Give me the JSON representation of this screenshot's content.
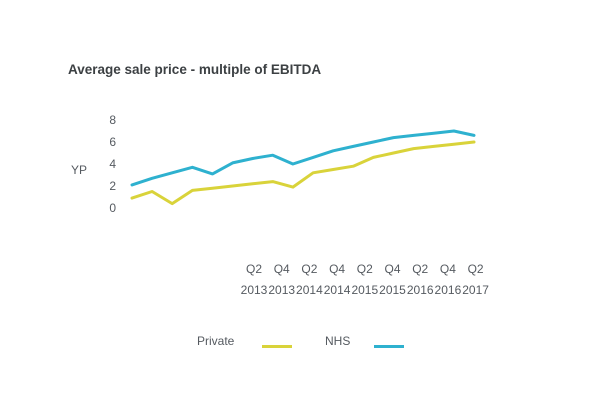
{
  "chart_data": {
    "type": "line",
    "title": "Average sale price - multiple of EBITDA",
    "ylabel": "YP",
    "xlabel": "",
    "ylim": [
      0,
      8
    ],
    "yticks": [
      0,
      2,
      4,
      6,
      8
    ],
    "x_tick_labels": [
      {
        "q": "Q2",
        "y": "2013"
      },
      {
        "q": "Q4",
        "y": "2013"
      },
      {
        "q": "Q2",
        "y": "2014"
      },
      {
        "q": "Q4",
        "y": "2014"
      },
      {
        "q": "Q2",
        "y": "2015"
      },
      {
        "q": "Q4",
        "y": "2015"
      },
      {
        "q": "Q2",
        "y": "2016"
      },
      {
        "q": "Q4",
        "y": "2016"
      },
      {
        "q": "Q2",
        "y": "2017"
      }
    ],
    "grid": false,
    "legend_position": "bottom",
    "series": [
      {
        "name": "Private",
        "color": "#d9d33a",
        "values": [
          0.9,
          1.5,
          0.4,
          1.6,
          1.8,
          2.0,
          2.2,
          2.4,
          1.9,
          3.2,
          3.5,
          3.8,
          4.6,
          5.0,
          5.4,
          5.6,
          5.8,
          6.0
        ]
      },
      {
        "name": "NHS",
        "color": "#2eb1cf",
        "values": [
          2.1,
          2.7,
          3.2,
          3.7,
          3.1,
          4.1,
          4.5,
          4.8,
          4.0,
          4.6,
          5.2,
          5.6,
          6.0,
          6.4,
          6.6,
          6.8,
          7.0,
          6.6
        ]
      }
    ]
  }
}
